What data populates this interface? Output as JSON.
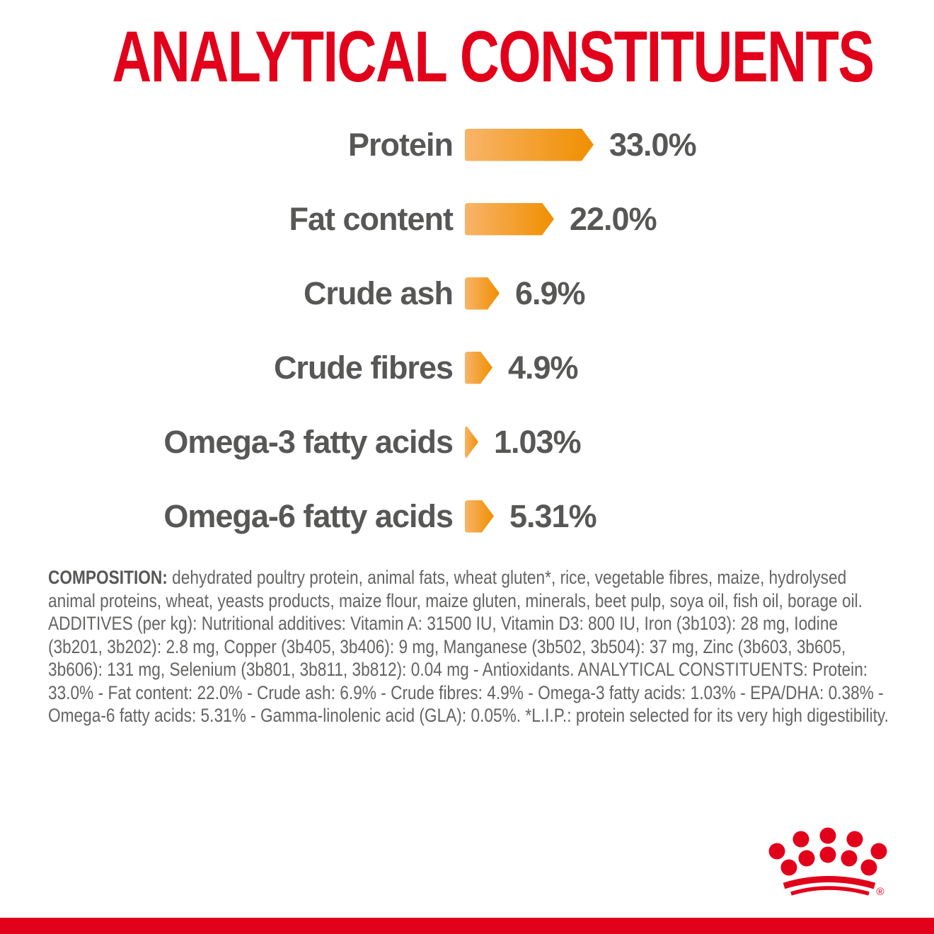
{
  "chart_data": {
    "type": "bar",
    "orientation": "horizontal",
    "title": "ANALYTICAL CONSTITUENTS",
    "categories": [
      "Protein",
      "Fat content",
      "Crude ash",
      "Crude fibres",
      "Omega-3 fatty acids",
      "Omega-6 fatty acids"
    ],
    "values": [
      33.0,
      22.0,
      6.9,
      4.9,
      1.03,
      5.31
    ],
    "value_labels": [
      "33.0%",
      "22.0%",
      "6.9%",
      "4.9%",
      "1.03%",
      "5.31%"
    ],
    "unit": "%",
    "bar_shape": "right-pointing-arrow",
    "legend": "none",
    "axes": "none",
    "colors": {
      "title_red": "#E2001A",
      "label_text": "#575756",
      "bar_gradient_start": "#F8B469",
      "bar_gradient_end": "#F08F00"
    }
  },
  "composition": {
    "lead": "COMPOSITION:",
    "body": " dehydrated poultry protein, animal fats, wheat gluten*, rice, vegetable fibres, maize, hydrolysed animal proteins, wheat, yeasts products, maize flour, maize gluten, minerals, beet pulp, soya oil, fish oil, borage oil. ADDITIVES (per kg): Nutritional additives: Vitamin A: 31500 IU, Vitamin D3: 800 IU, Iron (3b103): 28 mg, Iodine (3b201, 3b202): 2.8 mg, Copper (3b405, 3b406): 9 mg, Manganese (3b502, 3b504): 37 mg, Zinc (3b603, 3b605, 3b606): 131 mg, Selenium (3b801, 3b811, 3b812): 0.04 mg - Antioxidants. ANALYTICAL CONSTITUENTS: Protein: 33.0% - Fat content: 22.0% - Crude ash: 6.9% - Crude fibres: 4.9% - Omega-3 fatty acids: 1.03% - EPA/DHA: 0.38% - Omega-6 fatty acids: 5.31% - Gamma-linolenic acid (GLA): 0.05%. *L.I.P.: protein selected for its very high digestibility."
  },
  "footer": {
    "logo": "royal-canin-crown",
    "registered_mark": "®",
    "brand_red": "#E2001A"
  }
}
